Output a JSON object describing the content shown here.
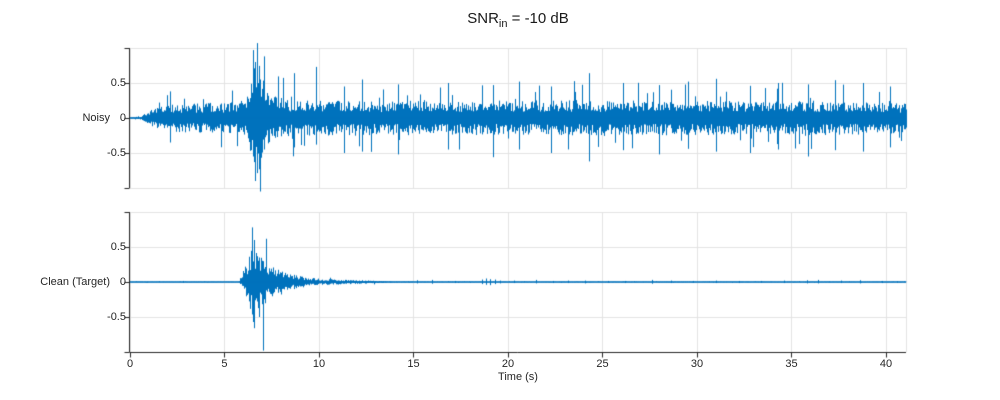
{
  "title": {
    "main": "SNR",
    "sub": "in",
    "rest": " = -10 dB"
  },
  "colors": {
    "line": "#0072BD",
    "axis": "#262626",
    "grid": "#e3e3e3",
    "text": "#262626",
    "background": "#ffffff"
  },
  "chart_data": {
    "type": "line",
    "title": "SNR_in = -10 dB",
    "xlabel": "Time (s)",
    "xlim": [
      0,
      41.06
    ],
    "xticks": [
      0,
      5,
      10,
      15,
      20,
      25,
      30,
      35,
      40
    ],
    "xtick_labels": [
      "0",
      "5",
      "10",
      "15",
      "20",
      "25",
      "30",
      "35",
      "40"
    ],
    "ylim": [
      -1,
      1
    ],
    "yticks": [
      {
        "v": 1,
        "label": ""
      },
      {
        "v": 0.5,
        "label": "0.5"
      },
      {
        "v": 0,
        "label": "0"
      },
      {
        "v": -0.5,
        "label": "-0.5"
      },
      {
        "v": -1,
        "label": ""
      }
    ],
    "grid": true,
    "legend": "none",
    "subplots": [
      {
        "label": "Noisy",
        "seed": 1337,
        "envelope": [
          [
            0,
            0.012
          ],
          [
            0.45,
            0.018
          ],
          [
            0.7,
            0.06
          ],
          [
            1.0,
            0.14
          ],
          [
            1.5,
            0.21
          ],
          [
            2.2,
            0.24
          ],
          [
            3,
            0.26
          ],
          [
            4,
            0.27
          ],
          [
            5,
            0.27
          ],
          [
            5.8,
            0.3
          ],
          [
            6.2,
            0.42
          ],
          [
            6.45,
            0.85
          ],
          [
            6.75,
            1.0
          ],
          [
            7.0,
            0.75
          ],
          [
            7.2,
            0.5
          ],
          [
            7.6,
            0.4
          ],
          [
            8.2,
            0.34
          ],
          [
            9,
            0.31
          ],
          [
            10,
            0.32
          ],
          [
            11,
            0.31
          ],
          [
            12,
            0.32
          ],
          [
            13.5,
            0.3
          ],
          [
            15,
            0.31
          ],
          [
            16.5,
            0.3
          ],
          [
            18,
            0.31
          ],
          [
            19.5,
            0.3
          ],
          [
            21,
            0.3
          ],
          [
            22.5,
            0.31
          ],
          [
            24,
            0.32
          ],
          [
            25.5,
            0.3
          ],
          [
            27,
            0.3
          ],
          [
            28.5,
            0.31
          ],
          [
            30,
            0.3
          ],
          [
            31.5,
            0.31
          ],
          [
            33,
            0.3
          ],
          [
            34.5,
            0.3
          ],
          [
            36,
            0.31
          ],
          [
            37.5,
            0.3
          ],
          [
            39,
            0.3
          ],
          [
            40.3,
            0.28
          ],
          [
            41.06,
            0.26
          ]
        ],
        "spikes": [
          [
            6.5,
            0.97,
            -0.55
          ],
          [
            6.62,
            0.8,
            -0.9
          ],
          [
            6.72,
            1.07,
            -0.75
          ],
          [
            6.9,
            0.55,
            -1.05
          ],
          [
            7.08,
            0.88,
            -0.45
          ],
          [
            2.1,
            0.38,
            -0.35
          ],
          [
            8.7,
            0.64,
            -0.42
          ],
          [
            9.85,
            0.73,
            -0.38
          ],
          [
            11.3,
            0.45,
            -0.5
          ],
          [
            12.3,
            0.55,
            -0.48
          ],
          [
            14.2,
            0.48,
            -0.52
          ],
          [
            16.8,
            0.5,
            -0.45
          ],
          [
            19.2,
            0.47,
            -0.56
          ],
          [
            20.6,
            0.52,
            -0.45
          ],
          [
            22.3,
            0.45,
            -0.5
          ],
          [
            24.3,
            0.64,
            -0.62
          ],
          [
            26.1,
            0.5,
            -0.46
          ],
          [
            28.0,
            0.47,
            -0.52
          ],
          [
            29.5,
            0.52,
            -0.44
          ],
          [
            31.0,
            0.56,
            -0.48
          ],
          [
            32.8,
            0.46,
            -0.5
          ],
          [
            34.3,
            0.5,
            -0.45
          ],
          [
            35.9,
            0.48,
            -0.55
          ],
          [
            37.3,
            0.54,
            -0.46
          ],
          [
            38.8,
            0.5,
            -0.48
          ],
          [
            40.2,
            0.45,
            -0.42
          ]
        ]
      },
      {
        "label": "Clean (Target)",
        "seed": 4242,
        "envelope": [
          [
            0,
            0.006
          ],
          [
            5.75,
            0.006
          ],
          [
            5.85,
            0.05
          ],
          [
            6.0,
            0.18
          ],
          [
            6.15,
            0.35
          ],
          [
            6.3,
            0.5
          ],
          [
            6.45,
            0.72
          ],
          [
            6.65,
            0.6
          ],
          [
            6.8,
            0.45
          ],
          [
            7.0,
            0.5
          ],
          [
            7.15,
            0.38
          ],
          [
            7.4,
            0.3
          ],
          [
            7.7,
            0.24
          ],
          [
            8.0,
            0.2
          ],
          [
            8.4,
            0.15
          ],
          [
            8.9,
            0.11
          ],
          [
            9.4,
            0.08
          ],
          [
            10,
            0.06
          ],
          [
            10.8,
            0.05
          ],
          [
            11.6,
            0.04
          ],
          [
            12.4,
            0.03
          ],
          [
            13.2,
            0.018
          ],
          [
            14,
            0.01
          ],
          [
            15,
            0.007
          ],
          [
            41.06,
            0.006
          ]
        ],
        "spikes": [
          [
            6.45,
            0.78,
            -0.3
          ],
          [
            6.55,
            0.6,
            -0.66
          ],
          [
            6.85,
            0.35,
            -0.5
          ],
          [
            7.02,
            0.08,
            -0.98
          ],
          [
            2.8,
            0.015,
            -0.01
          ],
          [
            15.2,
            0.025,
            -0.02
          ],
          [
            16.0,
            0.03,
            -0.025
          ],
          [
            17.2,
            0.015,
            -0.015
          ],
          [
            18.6,
            0.035,
            -0.03
          ],
          [
            18.85,
            0.05,
            -0.04
          ],
          [
            19.05,
            0.04,
            -0.045
          ],
          [
            19.3,
            0.035,
            -0.03
          ],
          [
            19.6,
            0.02,
            -0.02
          ],
          [
            20.3,
            0.02,
            -0.015
          ],
          [
            21.5,
            0.03,
            -0.02
          ],
          [
            22.4,
            0.015,
            -0.015
          ],
          [
            23.2,
            0.02,
            -0.015
          ],
          [
            24.1,
            0.02,
            -0.02
          ],
          [
            25.3,
            0.015,
            -0.01
          ],
          [
            26.2,
            0.015,
            -0.015
          ],
          [
            27.6,
            0.03,
            -0.025
          ],
          [
            28.6,
            0.02,
            -0.015
          ],
          [
            29.8,
            0.015,
            -0.01
          ],
          [
            31.0,
            0.02,
            -0.015
          ],
          [
            32.2,
            0.015,
            -0.015
          ],
          [
            33.4,
            0.015,
            -0.01
          ],
          [
            34.6,
            0.02,
            -0.015
          ],
          [
            35.8,
            0.025,
            -0.02
          ],
          [
            36.4,
            0.03,
            -0.02
          ],
          [
            37.6,
            0.02,
            -0.015
          ],
          [
            38.6,
            0.025,
            -0.02
          ],
          [
            39.8,
            0.015,
            -0.015
          ],
          [
            40.6,
            0.01,
            -0.01
          ]
        ]
      }
    ]
  }
}
